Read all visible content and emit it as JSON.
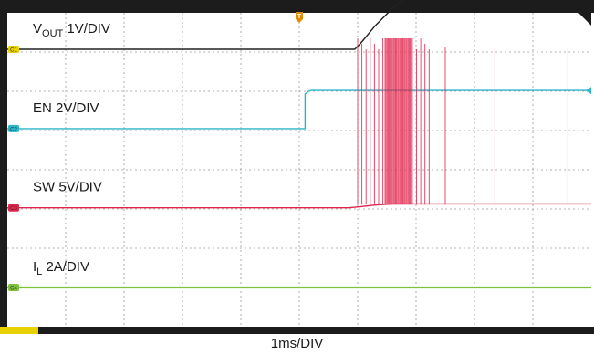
{
  "chart_data": {
    "type": "line",
    "title": "",
    "timebase_label": "1ms/DIV",
    "grid": true,
    "divisions": {
      "x": 10,
      "y": 8
    },
    "trigger_marker": "T",
    "time_unit": "ms",
    "time_range": [
      0,
      10
    ],
    "series": [
      {
        "channel": "C1",
        "name_main": "V",
        "name_sub": "OUT",
        "scale": "1V/DIV",
        "color": "#222222",
        "marker_color": "#e8d100",
        "ref_div": 0.93,
        "points": [
          [
            0,
            0
          ],
          [
            5.95,
            0
          ],
          [
            6.05,
            0.15
          ],
          [
            6.3,
            0.6
          ],
          [
            6.6,
            1.05
          ],
          [
            6.9,
            1.42
          ],
          [
            7.2,
            1.72
          ],
          [
            7.4,
            1.8
          ],
          [
            10,
            1.8
          ]
        ]
      },
      {
        "channel": "C2",
        "name_main": "EN",
        "name_sub": "",
        "scale": "2V/DIV",
        "color": "#2bb5c9",
        "marker_color": "#2bb5c9",
        "ref_div": 2.95,
        "points": [
          [
            0,
            0
          ],
          [
            5.1,
            0
          ],
          [
            5.1,
            0.88
          ],
          [
            5.16,
            0.95
          ],
          [
            5.2,
            0.97
          ],
          [
            10,
            0.97
          ]
        ]
      },
      {
        "channel": "C3",
        "name_main": "SW",
        "name_sub": "",
        "scale": "5V/DIV",
        "color": "#e0254d",
        "marker_color": "#e0254d",
        "ref_div": 4.97,
        "points": [
          [
            0,
            0
          ],
          [
            5.85,
            0
          ],
          [
            6.05,
            0.03
          ],
          [
            6.3,
            0.07
          ],
          [
            6.6,
            0.1
          ],
          [
            10,
            0.1
          ]
        ],
        "switching_region": [
          6.0,
          7.25
        ],
        "spike_top_div": 0.65
      },
      {
        "channel": "C4",
        "name_main": "I",
        "name_sub": "L",
        "scale": "2A/DIV",
        "color": "#7ec23a",
        "marker_color": "#7ec23a",
        "ref_div": 7.0,
        "points": [
          [
            0,
            0
          ],
          [
            10,
            0
          ]
        ]
      }
    ]
  }
}
